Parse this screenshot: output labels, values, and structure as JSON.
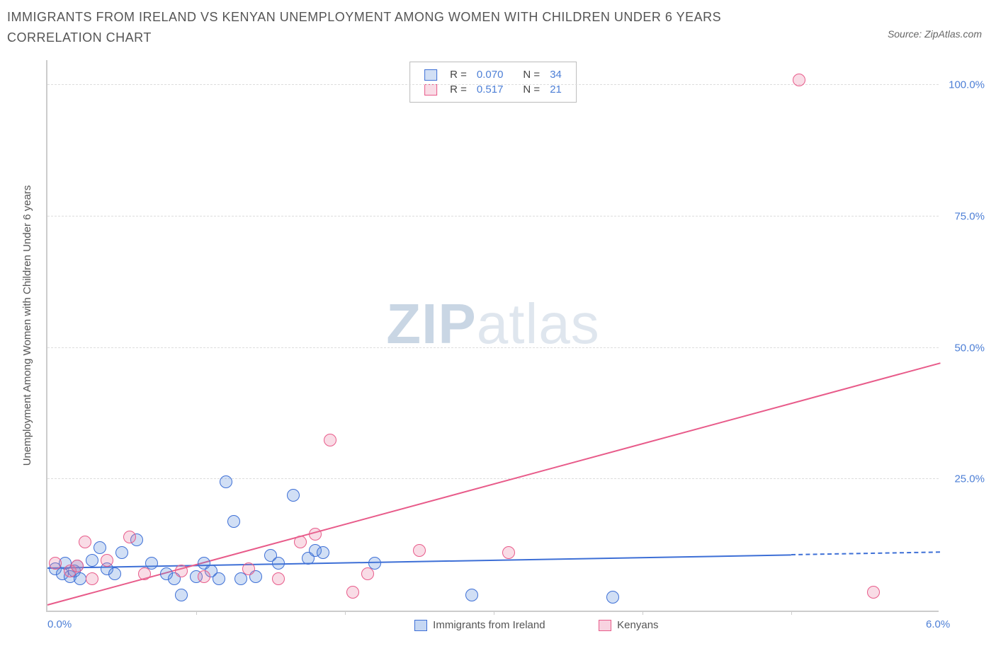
{
  "title": "IMMIGRANTS FROM IRELAND VS KENYAN UNEMPLOYMENT AMONG WOMEN WITH CHILDREN UNDER 6 YEARS CORRELATION CHART",
  "source_label": "Source: ZipAtlas.com",
  "y_axis_label": "Unemployment Among Women with Children Under 6 years",
  "watermark_zip": "ZIP",
  "watermark_atlas": "atlas",
  "chart": {
    "type": "scatter",
    "background_color": "#ffffff",
    "grid_color": "#dddddd",
    "axis_color": "#cccccc",
    "tick_label_color": "#4d7fd6",
    "tick_fontsize": 15,
    "title_fontsize": 18,
    "title_color": "#555555",
    "xlim": [
      0.0,
      6.0
    ],
    "ylim": [
      0.0,
      105.0
    ],
    "x_ticks": [
      0.0,
      1.0,
      2.0,
      3.0,
      4.0,
      5.0,
      6.0
    ],
    "x_tick_labels": [
      "0.0%",
      "",
      "",
      "",
      "",
      "",
      "6.0%"
    ],
    "y_ticks": [
      25.0,
      50.0,
      75.0,
      100.0
    ],
    "y_tick_labels": [
      "25.0%",
      "50.0%",
      "75.0%",
      "100.0%"
    ],
    "point_radius": 9,
    "point_border_width": 1.5,
    "point_fill_opacity": 0.28,
    "series": [
      {
        "name": "Immigrants from Ireland",
        "color": "#3d6fd6",
        "fill": "rgba(90,140,220,0.28)",
        "stroke": "#3d6fd6",
        "r_value": "0.070",
        "n_value": "34",
        "trend": {
          "x1": 0.0,
          "y1": 8.0,
          "x2": 5.0,
          "y2": 10.5,
          "dash_to_x": 6.0
        },
        "points": [
          [
            0.05,
            8.0
          ],
          [
            0.1,
            7.0
          ],
          [
            0.12,
            9.0
          ],
          [
            0.15,
            6.5
          ],
          [
            0.18,
            7.5
          ],
          [
            0.2,
            8.5
          ],
          [
            0.22,
            6.0
          ],
          [
            0.3,
            9.5
          ],
          [
            0.35,
            12.0
          ],
          [
            0.4,
            8.0
          ],
          [
            0.45,
            7.0
          ],
          [
            0.5,
            11.0
          ],
          [
            0.6,
            13.5
          ],
          [
            0.7,
            9.0
          ],
          [
            0.8,
            7.0
          ],
          [
            0.85,
            6.0
          ],
          [
            0.9,
            3.0
          ],
          [
            1.0,
            6.5
          ],
          [
            1.05,
            9.0
          ],
          [
            1.1,
            7.5
          ],
          [
            1.15,
            6.0
          ],
          [
            1.2,
            24.5
          ],
          [
            1.25,
            17.0
          ],
          [
            1.3,
            6.0
          ],
          [
            1.4,
            6.5
          ],
          [
            1.5,
            10.5
          ],
          [
            1.55,
            9.0
          ],
          [
            1.65,
            22.0
          ],
          [
            1.75,
            10.0
          ],
          [
            1.8,
            11.5
          ],
          [
            1.85,
            11.0
          ],
          [
            2.2,
            9.0
          ],
          [
            2.85,
            3.0
          ],
          [
            3.8,
            2.5
          ]
        ]
      },
      {
        "name": "Kenyans",
        "color": "#e85b8a",
        "fill": "rgba(235,130,165,0.28)",
        "stroke": "#e85b8a",
        "r_value": "0.517",
        "n_value": "21",
        "trend": {
          "x1": 0.0,
          "y1": 1.0,
          "x2": 6.0,
          "y2": 47.0
        },
        "points": [
          [
            0.05,
            9.0
          ],
          [
            0.15,
            7.5
          ],
          [
            0.2,
            8.5
          ],
          [
            0.25,
            13.0
          ],
          [
            0.3,
            6.0
          ],
          [
            0.4,
            9.5
          ],
          [
            0.55,
            14.0
          ],
          [
            0.65,
            7.0
          ],
          [
            0.9,
            7.5
          ],
          [
            1.05,
            6.5
          ],
          [
            1.35,
            8.0
          ],
          [
            1.55,
            6.0
          ],
          [
            1.7,
            13.0
          ],
          [
            1.8,
            14.5
          ],
          [
            1.9,
            32.5
          ],
          [
            2.05,
            3.5
          ],
          [
            2.15,
            7.0
          ],
          [
            2.5,
            11.5
          ],
          [
            3.1,
            11.0
          ],
          [
            5.05,
            101.0
          ],
          [
            5.55,
            3.5
          ]
        ]
      }
    ],
    "legend_top": {
      "r_label": "R =",
      "n_label": "N ="
    },
    "legend_bottom": [
      {
        "label": "Immigrants from Ireland",
        "color": "#3d6fd6",
        "fill": "rgba(90,140,220,0.35)"
      },
      {
        "label": "Kenyans",
        "color": "#e85b8a",
        "fill": "rgba(235,130,165,0.35)"
      }
    ]
  }
}
